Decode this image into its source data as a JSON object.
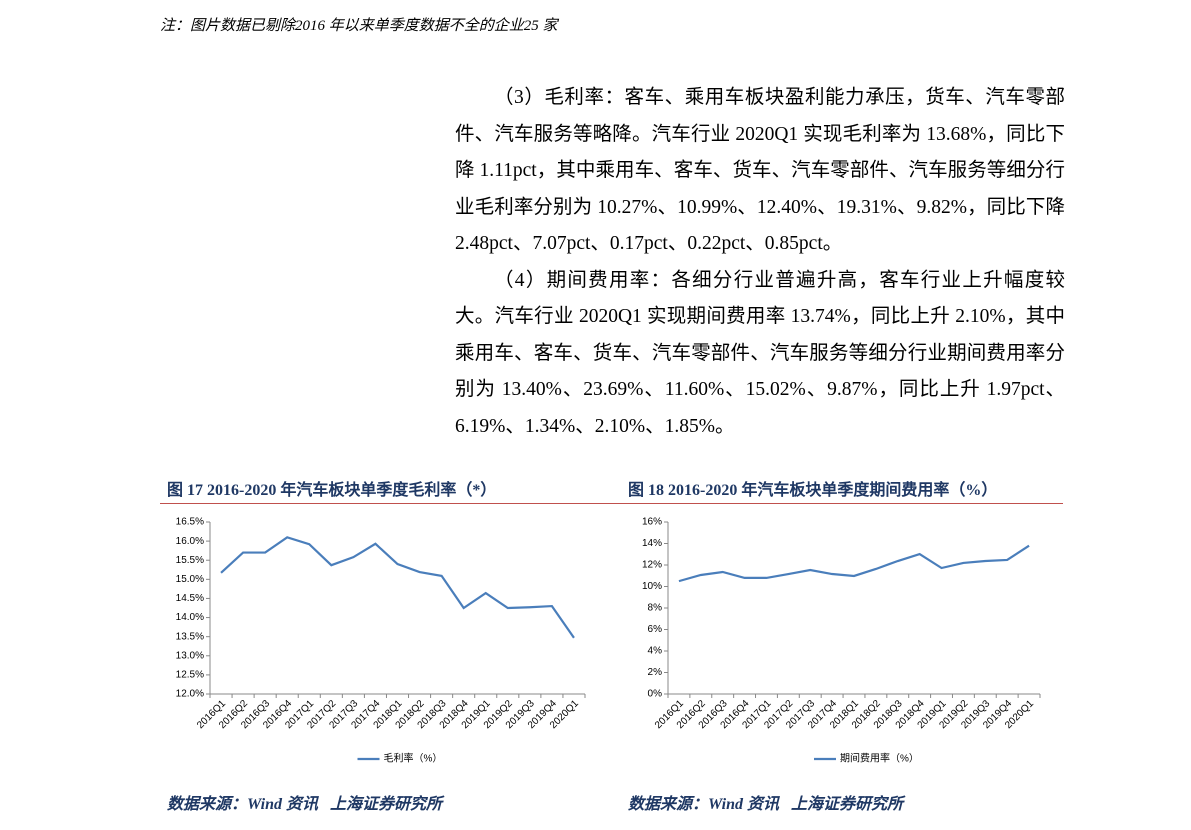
{
  "note": "注：图片数据已剔除2016 年以来单季度数据不全的企业25 家",
  "paragraphs": [
    "（3）毛利率：客车、乘用车板块盈利能力承压，货车、汽车零部件、汽车服务等略降。汽车行业 2020Q1 实现毛利率为 13.68%，同比下降 1.11pct，其中乘用车、客车、货车、汽车零部件、汽车服务等细分行业毛利率分别为 10.27%、10.99%、12.40%、19.31%、9.82%，同比下降 2.48pct、7.07pct、0.17pct、0.22pct、0.85pct。",
    "（4）期间费用率：各细分行业普遍升高，客车行业上升幅度较大。汽车行业 2020Q1 实现期间费用率 13.74%，同比上升 2.10%，其中乘用车、客车、货车、汽车零部件、汽车服务等细分行业期间费用率分别为 13.40%、23.69%、11.60%、15.02%、9.87%，同比上升 1.97pct、6.19%、1.34%、2.10%、1.85%。"
  ],
  "chart_data": [
    {
      "type": "line",
      "title": "图 17 2016-2020 年汽车板块单季度毛利率（*）",
      "source": "数据来源：Wind 资讯   上海证券研究所",
      "categories": [
        "2016Q1",
        "2016Q2",
        "2016Q3",
        "2016Q4",
        "2017Q1",
        "2017Q2",
        "2017Q3",
        "2017Q4",
        "2018Q1",
        "2018Q2",
        "2018Q3",
        "2018Q4",
        "2019Q1",
        "2019Q2",
        "2019Q3",
        "2019Q4",
        "2020Q1"
      ],
      "series": [
        {
          "name": "毛利率（%）",
          "color": "#4a7ebb",
          "values": [
            15.17,
            15.7,
            15.7,
            16.1,
            15.92,
            15.37,
            15.58,
            15.93,
            15.4,
            15.19,
            15.09,
            14.25,
            14.64,
            14.25,
            14.27,
            14.3,
            13.47
          ]
        }
      ],
      "ylim": [
        12,
        16.5
      ],
      "yticks": [
        {
          "value": 12,
          "label": "12.0%"
        },
        {
          "value": 12.5,
          "label": "12.5%"
        },
        {
          "value": 13,
          "label": "13.0%"
        },
        {
          "value": 13.5,
          "label": "13.5%"
        },
        {
          "value": 14,
          "label": "14.0%"
        },
        {
          "value": 14.5,
          "label": "14.5%"
        },
        {
          "value": 15,
          "label": "15.0%"
        },
        {
          "value": 15.5,
          "label": "15.5%"
        },
        {
          "value": 16,
          "label": "16.0%"
        },
        {
          "value": 16.5,
          "label": "16.5%"
        }
      ],
      "legend": "bottom"
    },
    {
      "type": "line",
      "title": "图 18 2016-2020 年汽车板块单季度期间费用率（%）",
      "source": "数据来源：Wind 资讯   上海证券研究所",
      "categories": [
        "2016Q1",
        "2016Q2",
        "2016Q3",
        "2016Q4",
        "2017Q1",
        "2017Q2",
        "2017Q3",
        "2017Q4",
        "2018Q1",
        "2018Q2",
        "2018Q3",
        "2018Q4",
        "2019Q1",
        "2019Q2",
        "2019Q3",
        "2019Q4",
        "2020Q1"
      ],
      "series": [
        {
          "name": "期间费用率（%）",
          "color": "#4a7ebb",
          "values": [
            10.5,
            11.07,
            11.35,
            10.8,
            10.8,
            11.16,
            11.53,
            11.16,
            10.98,
            11.63,
            12.37,
            13.02,
            11.72,
            12.19,
            12.37,
            12.47,
            13.8
          ]
        }
      ],
      "ylim": [
        0,
        16
      ],
      "yticks": [
        {
          "value": 0,
          "label": "0%"
        },
        {
          "value": 2,
          "label": "2%"
        },
        {
          "value": 4,
          "label": "4%"
        },
        {
          "value": 6,
          "label": "6%"
        },
        {
          "value": 8,
          "label": "8%"
        },
        {
          "value": 10,
          "label": "10%"
        },
        {
          "value": 12,
          "label": "12%"
        },
        {
          "value": 14,
          "label": "14%"
        },
        {
          "value": 16,
          "label": "16%"
        }
      ],
      "legend": "bottom"
    }
  ]
}
